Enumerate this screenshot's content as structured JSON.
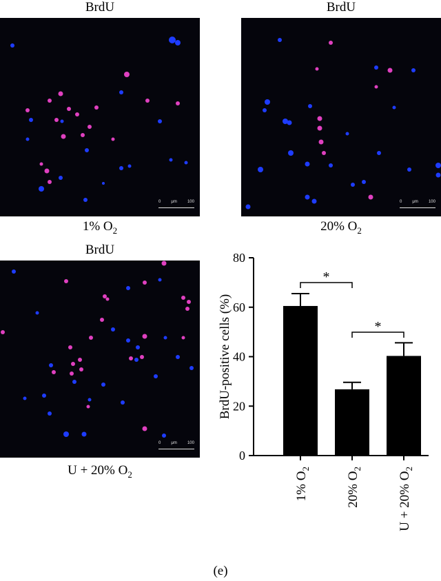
{
  "panels": [
    {
      "title": "BrdU",
      "caption_main": "1% O",
      "caption_sub": "2",
      "scale_left": "0",
      "scale_unit": "μm",
      "scale_right": "100"
    },
    {
      "title": "BrdU",
      "caption_main": "20% O",
      "caption_sub": "2",
      "scale_left": "0",
      "scale_unit": "μm",
      "scale_right": "100"
    },
    {
      "title": "BrdU",
      "caption_main": "U + 20% O",
      "caption_sub": "2",
      "scale_left": "0",
      "scale_unit": "μm",
      "scale_right": "100"
    }
  ],
  "figure_label": "(e)",
  "colors": {
    "nuclei_blue": "#1e3cff",
    "brdu_magenta": "#e040c0",
    "background": "#05050c",
    "bars": "#000000"
  },
  "chart_data": {
    "type": "bar",
    "categories": [
      "1% O2",
      "20% O2",
      "U + 20% O2"
    ],
    "category_labels": [
      {
        "main": "1% O",
        "sub": "2",
        "tail": ""
      },
      {
        "main": "20% O",
        "sub": "2",
        "tail": ""
      },
      {
        "main": "U + 20% O",
        "sub": "2",
        "tail": ""
      }
    ],
    "values": [
      60.5,
      26.8,
      40.3
    ],
    "errors": [
      5.0,
      2.8,
      5.3
    ],
    "ylabel": "BrdU-positive cells (%)",
    "ylim": [
      0,
      80
    ],
    "yticks": [
      0,
      20,
      40,
      60,
      80
    ],
    "grid": false,
    "significance": [
      {
        "from": 0,
        "to": 1,
        "label": "*"
      },
      {
        "from": 1,
        "to": 2,
        "label": "*"
      }
    ]
  }
}
